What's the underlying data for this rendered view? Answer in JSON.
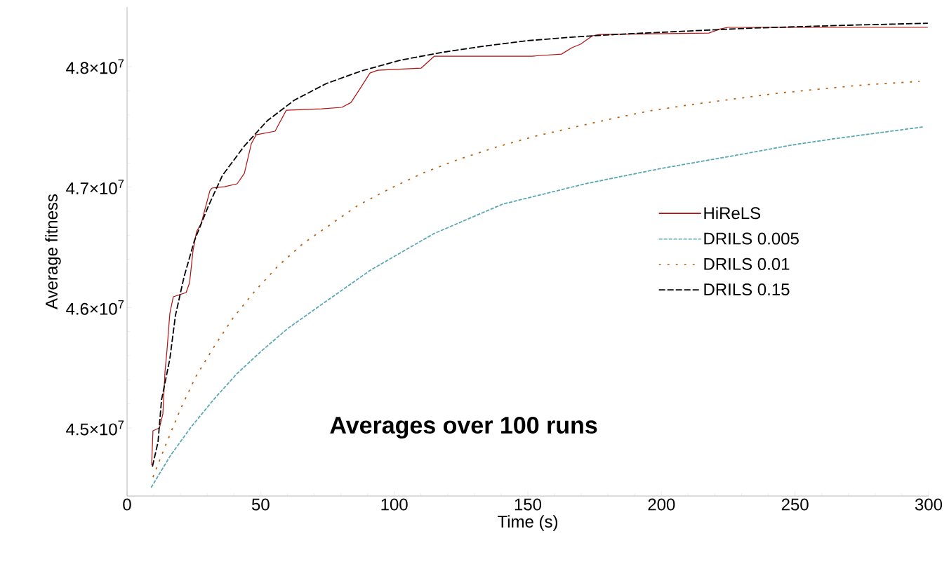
{
  "chart_data": {
    "type": "line",
    "xlabel": "Time (s)",
    "ylabel": "Average fitness",
    "annotations": [
      "Averages over 100 runs"
    ],
    "xlim": [
      0,
      300
    ],
    "ylim": [
      44435000,
      48495000
    ],
    "xticks": [
      0,
      50,
      100,
      150,
      200,
      250,
      300
    ],
    "yticks": [
      {
        "value": 45000000,
        "label": "4.5×10$^{7}$"
      },
      {
        "value": 46000000,
        "label": "4.6×10$^{7}$"
      },
      {
        "value": 47000000,
        "label": "4.7×10$^{7}$"
      },
      {
        "value": 48000000,
        "label": "4.8×10$^{7}$"
      }
    ],
    "grid": false,
    "legend": "right",
    "marker": "none",
    "series": [
      {
        "name": "HiReLS",
        "color": "#b50f0f",
        "line_style": "solid",
        "x": [
          9.2,
          9.7,
          12.1,
          13.4,
          14.2,
          15,
          16,
          17.3,
          22.1,
          23.4,
          24.7,
          26,
          27.8,
          31,
          31.8,
          36.5,
          41.2,
          43.9,
          46.5,
          48.3,
          55.4,
          59.6,
          72.8,
          80.4,
          83.8,
          86.9,
          90.9,
          93.8,
          110.1,
          115,
          151.6,
          162.6,
          166.5,
          169.7,
          174.2,
          176.8,
          217.8,
          222.2,
          224.9,
          299.7
        ],
        "values": [
          44691000,
          44977000,
          45000000,
          45116000,
          45466000,
          45658000,
          45949000,
          46089000,
          46124000,
          46206000,
          46473000,
          46631000,
          46701000,
          46969000,
          46992000,
          47003000,
          47027000,
          47114000,
          47359000,
          47434000,
          47464000,
          47638000,
          47650000,
          47662000,
          47702000,
          47807000,
          47947000,
          47970000,
          47988000,
          48087000,
          48087000,
          48104000,
          48157000,
          48186000,
          48256000,
          48267000,
          48279000,
          48314000,
          48326000,
          48326000
        ]
      },
      {
        "name": "DRILS 0.005",
        "color": "#5ba8b5",
        "line_style": "dashed",
        "x": [
          9,
          16.3,
          23.9,
          32.3,
          41,
          50.4,
          60.2,
          71.7,
          91.1,
          114.8,
          140.5,
          172,
          200,
          232.7,
          248.2,
          264.2,
          297.8
        ],
        "values": [
          44505000,
          44773000,
          45006000,
          45233000,
          45448000,
          45641000,
          45827000,
          46008000,
          46310000,
          46613000,
          46858000,
          47030000,
          47155000,
          47283000,
          47347000,
          47400000,
          47499000
        ]
      },
      {
        "name": "DRILS 0.01",
        "color": "#b86414",
        "line_style": "dashed",
        "x": [
          9.7,
          14.7,
          20,
          25.7,
          32.6,
          39.7,
          47.8,
          56.5,
          65.9,
          86.7,
          98.8,
          111.1,
          124.2,
          137.9,
          151.8,
          166.5,
          181.5,
          195.7,
          211.2,
          227,
          243,
          259,
          275.5,
          296.6
        ],
        "values": [
          44592000,
          44872000,
          45157000,
          45425000,
          45676000,
          45914000,
          46136000,
          46345000,
          46532000,
          46852000,
          46992000,
          47120000,
          47231000,
          47330000,
          47417000,
          47493000,
          47568000,
          47633000,
          47685000,
          47731000,
          47778000,
          47813000,
          47848000,
          47877000
        ]
      },
      {
        "name": "DRILS 0.15",
        "color": "#000000",
        "line_style": "dashed",
        "x": [
          9.5,
          11.6,
          12.9,
          16,
          18.1,
          21.3,
          25.2,
          30.5,
          35.7,
          43.9,
          52.5,
          62.5,
          74.6,
          87.7,
          102,
          117.2,
          132.9,
          149.5,
          166,
          182.8,
          216,
          234,
          268.5,
          299.7
        ],
        "values": [
          44680000,
          44884000,
          45233000,
          45571000,
          45932000,
          46252000,
          46555000,
          46846000,
          47097000,
          47341000,
          47551000,
          47720000,
          47860000,
          47964000,
          48052000,
          48116000,
          48168000,
          48215000,
          48244000,
          48267000,
          48302000,
          48320000,
          48343000,
          48360000
        ]
      }
    ]
  }
}
